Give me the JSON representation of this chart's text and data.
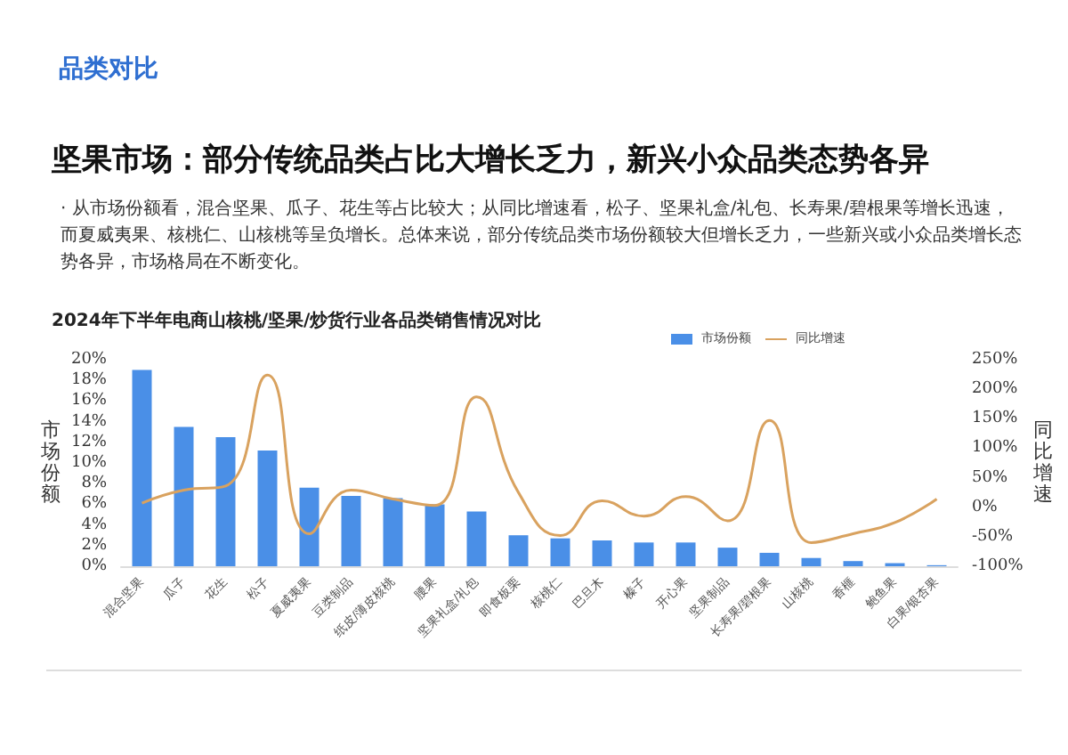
{
  "chart_data": {
    "type": "bar",
    "title": "坚果市场：部分传统品类占比大增长乏力，新兴小众品类态势各异",
    "subtitle": "2024年下半年电商山核桃/坚果/炒货行业各品类销售情况对比",
    "annotations": [
      "品类对比",
      "· 从市场份额看，混合坚果、瓜子、花生等占比较大；从同比增速看，松子、坚果礼盒/礼包、长寿果/碧根果等增长迅速，而夏威夷果、核桃仁、山核桃等呈负增长。总体来说，部分传统品类市场份额较大但增长乏力，一些新兴或小众品类增长态势各异，市场格局在不断变化。"
    ],
    "ylabel": "市场份额",
    "y2label": "同比增速",
    "categories": [
      "混合坚果",
      "瓜子",
      "花生",
      "松子",
      "夏威夷果",
      "豆类制品",
      "纸皮/薄皮核桃",
      "腰果",
      "坚果礼盒/礼包",
      "即食板栗",
      "核桃仁",
      "巴旦木",
      "榛子",
      "开心果",
      "坚果制品",
      "长寿果/碧根果",
      "山核桃",
      "香榧",
      "鲍鱼果",
      "白果/银杏果"
    ],
    "series": [
      {
        "name": "市场份额",
        "color": "#4a8fe7",
        "values": [
          19,
          13.5,
          12.5,
          11.2,
          7.6,
          6.8,
          6.6,
          6,
          5.3,
          3,
          2.7,
          2.5,
          2.3,
          2.3,
          1.8,
          1.3,
          0.8,
          0.5,
          0.3,
          0.1
        ]
      },
      {
        "name": "同比增速",
        "type": "line",
        "axis": "y2",
        "color": "#d9a25f",
        "values": [
          7,
          29,
          36,
          224,
          -45,
          29,
          14,
          3,
          187,
          25,
          -48,
          11,
          -15,
          18,
          -23,
          147,
          -60,
          -45,
          -26,
          14
        ]
      }
    ],
    "ylim": [
      0,
      20
    ],
    "yticks": [
      {
        "value": 0,
        "label": "0%"
      },
      {
        "value": 2,
        "label": "2%"
      },
      {
        "value": 4,
        "label": "4%"
      },
      {
        "value": 6,
        "label": "6%"
      },
      {
        "value": 8,
        "label": "8%"
      },
      {
        "value": 10,
        "label": "10%"
      },
      {
        "value": 12,
        "label": "12%"
      },
      {
        "value": 14,
        "label": "14%"
      },
      {
        "value": 16,
        "label": "16%"
      },
      {
        "value": 18,
        "label": "18%"
      },
      {
        "value": 20,
        "label": "20%"
      }
    ],
    "y2lim": [
      -100,
      250
    ],
    "y2ticks": [
      {
        "value": -100,
        "label": "-100%"
      },
      {
        "value": -50,
        "label": "-50%"
      },
      {
        "value": 0,
        "label": "0%"
      },
      {
        "value": 50,
        "label": "50%"
      },
      {
        "value": 100,
        "label": "100%"
      },
      {
        "value": 150,
        "label": "150%"
      },
      {
        "value": 200,
        "label": "200%"
      },
      {
        "value": 250,
        "label": "250%"
      }
    ],
    "legend": "top right",
    "grid": false,
    "marker": "none",
    "line_style": "solid"
  }
}
